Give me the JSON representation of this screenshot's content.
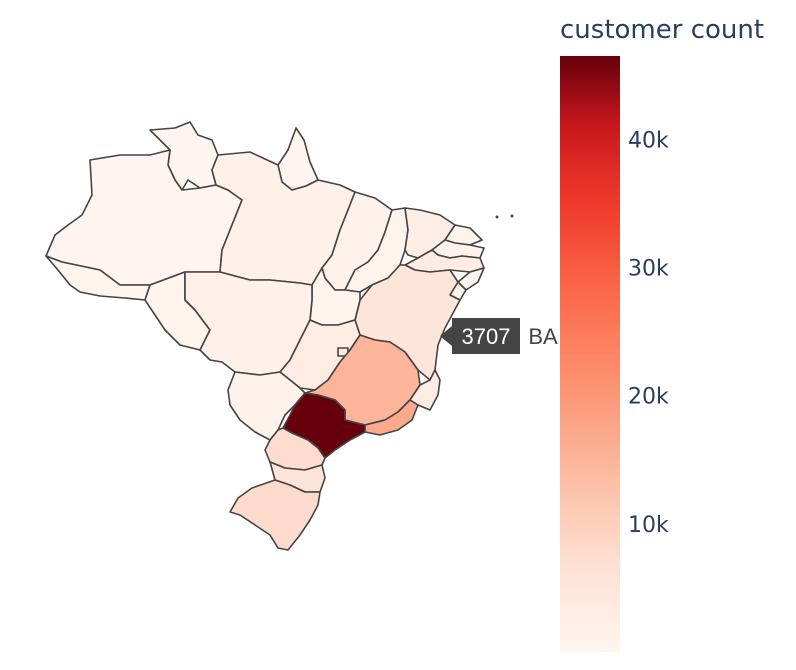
{
  "colorbar": {
    "title": "customer count",
    "ticks": [
      {
        "value": 10000,
        "label": "10k"
      },
      {
        "value": 20000,
        "label": "20k"
      },
      {
        "value": 30000,
        "label": "30k"
      },
      {
        "value": 40000,
        "label": "40k"
      }
    ],
    "min": 0,
    "max": 46500,
    "colorscale": [
      "#fff5f0",
      "#fdd3c1",
      "#fca082",
      "#fb6b4b",
      "#e32f27",
      "#b11218",
      "#67000d"
    ]
  },
  "hover": {
    "value": "3707",
    "name": "BA"
  },
  "regions": [
    {
      "state": "SP",
      "value": 46500
    },
    {
      "state": "MG",
      "value": 12500
    },
    {
      "state": "RJ",
      "value": 14000
    },
    {
      "state": "RS",
      "value": 6000
    },
    {
      "state": "PR",
      "value": 5600
    },
    {
      "state": "BA",
      "value": 3707
    },
    {
      "state": "SC",
      "value": 3900
    },
    {
      "state": "ES",
      "value": 2200
    },
    {
      "state": "GO",
      "value": 2300
    },
    {
      "state": "DF",
      "value": 2400
    },
    {
      "state": "PE",
      "value": 1800
    },
    {
      "state": "CE",
      "value": 1500
    },
    {
      "state": "PA",
      "value": 1100
    },
    {
      "state": "MT",
      "value": 1000
    },
    {
      "state": "MS",
      "value": 800
    },
    {
      "state": "MA",
      "value": 800
    },
    {
      "state": "PB",
      "value": 600
    },
    {
      "state": "RN",
      "value": 550
    },
    {
      "state": "AL",
      "value": 500
    },
    {
      "state": "PI",
      "value": 550
    },
    {
      "state": "SE",
      "value": 400
    },
    {
      "state": "TO",
      "value": 300
    },
    {
      "state": "RO",
      "value": 300
    },
    {
      "state": "AM",
      "value": 200
    },
    {
      "state": "AC",
      "value": 100
    },
    {
      "state": "AP",
      "value": 80
    },
    {
      "state": "RR",
      "value": 60
    }
  ]
}
